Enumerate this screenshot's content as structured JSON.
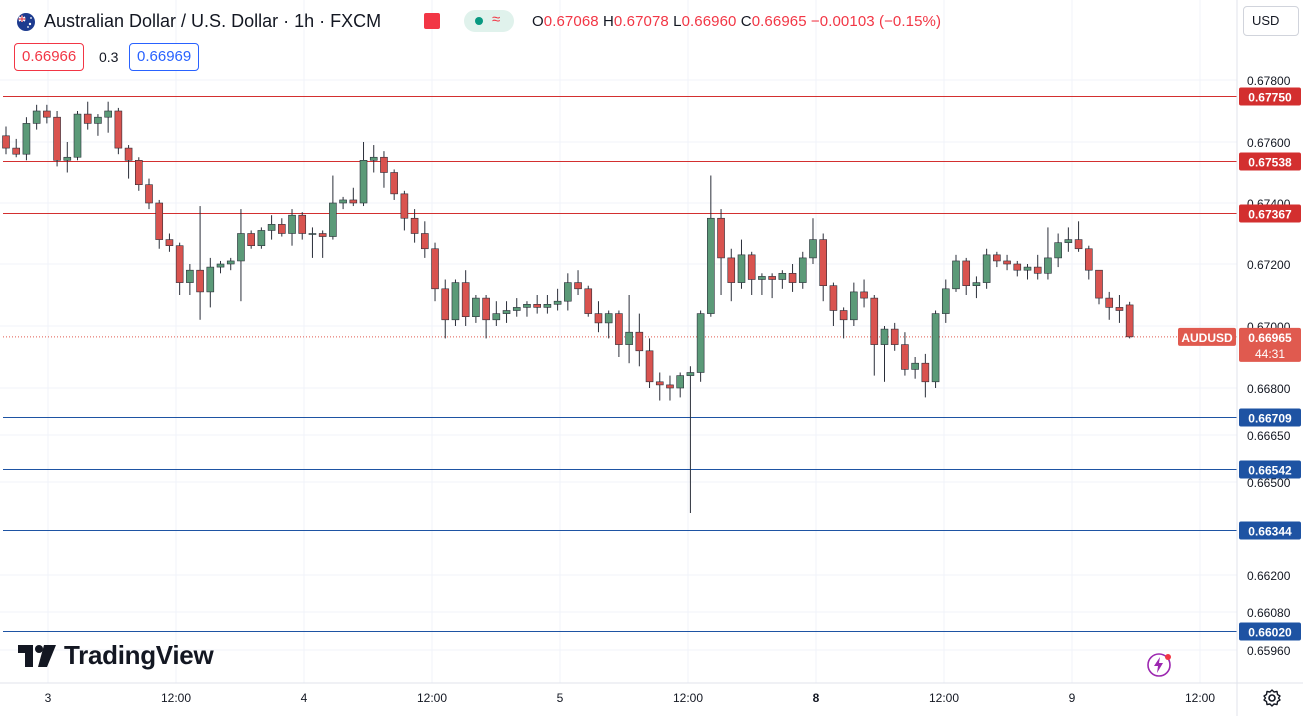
{
  "header": {
    "title": "Australian Dollar / U.S. Dollar · 1h · FXCM",
    "open_label": "O",
    "open": "0.67068",
    "high_label": "H",
    "high": "0.67078",
    "low_label": "L",
    "low": "0.66960",
    "close_label": "C",
    "close": "0.66965",
    "change": "−0.00103 (−0.15%)",
    "bid": "0.66966",
    "spread": "0.3",
    "ask": "0.66969",
    "currency": "USD"
  },
  "brand": {
    "name": "TradingView"
  },
  "icons": [
    "australia-flag-icon",
    "alert-bell-icon",
    "market-status-icon",
    "settings-gear-icon",
    "lightning-icon"
  ],
  "colors": {
    "up": "#5b9a78",
    "down": "#d9534f",
    "resistance": "#d32f2f",
    "support": "#1e53a3",
    "price": "#e05a4f",
    "grid": "#f0f3fa"
  },
  "chart_data": {
    "type": "candlestick",
    "symbol_tag": "AUDUSD",
    "current_price": "0.66965",
    "countdown": "44:31",
    "y_ticks": [
      "0.67800",
      "0.67600",
      "0.67400",
      "0.67200",
      "0.67000",
      "0.66800",
      "0.66650",
      "0.66500",
      "0.66200",
      "0.66080",
      "0.65960"
    ],
    "x_ticks": [
      "3",
      "12:00",
      "4",
      "12:00",
      "5",
      "12:00",
      "8",
      "12:00",
      "9",
      "12:00"
    ],
    "bold_x_ticks": [
      "8"
    ],
    "resistance_levels": [
      "0.67750",
      "0.67538",
      "0.67367"
    ],
    "support_levels": [
      "0.66709",
      "0.66542",
      "0.66344",
      "0.66020"
    ],
    "candles": [
      [
        0.6762,
        0.6765,
        0.6756,
        0.6758
      ],
      [
        0.6758,
        0.6761,
        0.6755,
        0.6756
      ],
      [
        0.6756,
        0.6768,
        0.6754,
        0.6766
      ],
      [
        0.6766,
        0.6772,
        0.6764,
        0.677
      ],
      [
        0.677,
        0.6772,
        0.6766,
        0.6768
      ],
      [
        0.6768,
        0.677,
        0.6752,
        0.6754
      ],
      [
        0.6754,
        0.676,
        0.675,
        0.6755
      ],
      [
        0.6755,
        0.677,
        0.6754,
        0.6769
      ],
      [
        0.6769,
        0.6773,
        0.6764,
        0.6766
      ],
      [
        0.6766,
        0.6769,
        0.6762,
        0.6768
      ],
      [
        0.6768,
        0.6773,
        0.6763,
        0.677
      ],
      [
        0.677,
        0.6771,
        0.6756,
        0.6758
      ],
      [
        0.6758,
        0.6759,
        0.6748,
        0.6754
      ],
      [
        0.6754,
        0.6755,
        0.6744,
        0.6746
      ],
      [
        0.6746,
        0.6748,
        0.6738,
        0.674
      ],
      [
        0.674,
        0.6741,
        0.6725,
        0.6728
      ],
      [
        0.6728,
        0.673,
        0.6724,
        0.6726
      ],
      [
        0.6726,
        0.6727,
        0.671,
        0.6714
      ],
      [
        0.6714,
        0.672,
        0.671,
        0.6718
      ],
      [
        0.6718,
        0.6739,
        0.6702,
        0.6711
      ],
      [
        0.6711,
        0.6722,
        0.6706,
        0.6719
      ],
      [
        0.6719,
        0.6721,
        0.6717,
        0.672
      ],
      [
        0.672,
        0.6722,
        0.6718,
        0.6721
      ],
      [
        0.6721,
        0.6738,
        0.6708,
        0.673
      ],
      [
        0.673,
        0.6731,
        0.6725,
        0.6726
      ],
      [
        0.6726,
        0.6732,
        0.6725,
        0.6731
      ],
      [
        0.6731,
        0.6736,
        0.6728,
        0.6733
      ],
      [
        0.6733,
        0.6735,
        0.6729,
        0.673
      ],
      [
        0.673,
        0.6738,
        0.6726,
        0.6736
      ],
      [
        0.6736,
        0.6737,
        0.6728,
        0.673
      ],
      [
        0.673,
        0.6732,
        0.6722,
        0.673
      ],
      [
        0.673,
        0.6731,
        0.6722,
        0.6729
      ],
      [
        0.6729,
        0.6749,
        0.6728,
        0.674
      ],
      [
        0.674,
        0.6742,
        0.6738,
        0.6741
      ],
      [
        0.6741,
        0.6745,
        0.6739,
        0.674
      ],
      [
        0.674,
        0.676,
        0.6739,
        0.6754
      ],
      [
        0.6754,
        0.6759,
        0.675,
        0.6755
      ],
      [
        0.6755,
        0.6757,
        0.6745,
        0.675
      ],
      [
        0.675,
        0.6751,
        0.6741,
        0.6743
      ],
      [
        0.6743,
        0.6744,
        0.6731,
        0.6735
      ],
      [
        0.6735,
        0.6738,
        0.6727,
        0.673
      ],
      [
        0.673,
        0.6734,
        0.6722,
        0.6725
      ],
      [
        0.6725,
        0.6727,
        0.6708,
        0.6712
      ],
      [
        0.6712,
        0.6715,
        0.6696,
        0.6702
      ],
      [
        0.6702,
        0.6715,
        0.67,
        0.6714
      ],
      [
        0.6714,
        0.6718,
        0.67,
        0.6703
      ],
      [
        0.6703,
        0.671,
        0.6701,
        0.6709
      ],
      [
        0.6709,
        0.671,
        0.6696,
        0.6702
      ],
      [
        0.6702,
        0.6708,
        0.67,
        0.6704
      ],
      [
        0.6704,
        0.6708,
        0.6701,
        0.6705
      ],
      [
        0.6705,
        0.6709,
        0.6703,
        0.6706
      ],
      [
        0.6706,
        0.6708,
        0.6703,
        0.6707
      ],
      [
        0.6707,
        0.671,
        0.6704,
        0.6706
      ],
      [
        0.6706,
        0.671,
        0.6704,
        0.6707
      ],
      [
        0.6707,
        0.6712,
        0.6705,
        0.6708
      ],
      [
        0.6708,
        0.6717,
        0.6705,
        0.6714
      ],
      [
        0.6714,
        0.6718,
        0.671,
        0.6712
      ],
      [
        0.6712,
        0.6713,
        0.6703,
        0.6704
      ],
      [
        0.6704,
        0.6708,
        0.6698,
        0.6701
      ],
      [
        0.6701,
        0.6705,
        0.6696,
        0.6704
      ],
      [
        0.6704,
        0.6705,
        0.669,
        0.6694
      ],
      [
        0.6694,
        0.671,
        0.6688,
        0.6698
      ],
      [
        0.6698,
        0.6704,
        0.6687,
        0.6692
      ],
      [
        0.6692,
        0.6696,
        0.668,
        0.6682
      ],
      [
        0.6682,
        0.6685,
        0.6676,
        0.6681
      ],
      [
        0.6681,
        0.6684,
        0.6676,
        0.668
      ],
      [
        0.668,
        0.6685,
        0.6677,
        0.6684
      ],
      [
        0.6684,
        0.6687,
        0.664,
        0.6685
      ],
      [
        0.6685,
        0.6705,
        0.6682,
        0.6704
      ],
      [
        0.6704,
        0.6749,
        0.6703,
        0.6735
      ],
      [
        0.6735,
        0.6738,
        0.671,
        0.6722
      ],
      [
        0.6722,
        0.6725,
        0.6708,
        0.6714
      ],
      [
        0.6714,
        0.6728,
        0.6712,
        0.6723
      ],
      [
        0.6723,
        0.6724,
        0.671,
        0.6715
      ],
      [
        0.6715,
        0.6717,
        0.671,
        0.6716
      ],
      [
        0.6716,
        0.6717,
        0.6709,
        0.6715
      ],
      [
        0.6715,
        0.6718,
        0.6712,
        0.6717
      ],
      [
        0.6717,
        0.672,
        0.6711,
        0.6714
      ],
      [
        0.6714,
        0.6724,
        0.6712,
        0.6722
      ],
      [
        0.6722,
        0.6735,
        0.672,
        0.6728
      ],
      [
        0.6728,
        0.673,
        0.6708,
        0.6713
      ],
      [
        0.6713,
        0.6714,
        0.67,
        0.6705
      ],
      [
        0.6705,
        0.6706,
        0.6696,
        0.6702
      ],
      [
        0.6702,
        0.6714,
        0.67,
        0.6711
      ],
      [
        0.6711,
        0.6715,
        0.6706,
        0.6709
      ],
      [
        0.6709,
        0.671,
        0.6684,
        0.6694
      ],
      [
        0.6694,
        0.67,
        0.6682,
        0.6699
      ],
      [
        0.6699,
        0.6701,
        0.6692,
        0.6694
      ],
      [
        0.6694,
        0.6698,
        0.6684,
        0.6686
      ],
      [
        0.6686,
        0.669,
        0.6683,
        0.6688
      ],
      [
        0.6688,
        0.6691,
        0.6677,
        0.6682
      ],
      [
        0.6682,
        0.6705,
        0.668,
        0.6704
      ],
      [
        0.6704,
        0.6715,
        0.6701,
        0.6712
      ],
      [
        0.6712,
        0.6723,
        0.6711,
        0.6721
      ],
      [
        0.6721,
        0.6722,
        0.671,
        0.6713
      ],
      [
        0.6713,
        0.6716,
        0.6709,
        0.6714
      ],
      [
        0.6714,
        0.6725,
        0.6712,
        0.6723
      ],
      [
        0.6723,
        0.6724,
        0.6719,
        0.6721
      ],
      [
        0.6721,
        0.6723,
        0.6718,
        0.672
      ],
      [
        0.672,
        0.6721,
        0.6716,
        0.6718
      ],
      [
        0.6718,
        0.672,
        0.6715,
        0.6719
      ],
      [
        0.6719,
        0.6723,
        0.6715,
        0.6717
      ],
      [
        0.6717,
        0.6732,
        0.6715,
        0.6722
      ],
      [
        0.6722,
        0.673,
        0.6719,
        0.6727
      ],
      [
        0.6727,
        0.6732,
        0.6724,
        0.6728
      ],
      [
        0.6728,
        0.6734,
        0.6724,
        0.6725
      ],
      [
        0.6725,
        0.6726,
        0.6715,
        0.6718
      ],
      [
        0.6718,
        0.6718,
        0.6707,
        0.6709
      ],
      [
        0.6709,
        0.6711,
        0.6702,
        0.6706
      ],
      [
        0.6706,
        0.671,
        0.6701,
        0.6705
      ],
      [
        0.67068,
        0.67078,
        0.6696,
        0.66965
      ]
    ]
  }
}
